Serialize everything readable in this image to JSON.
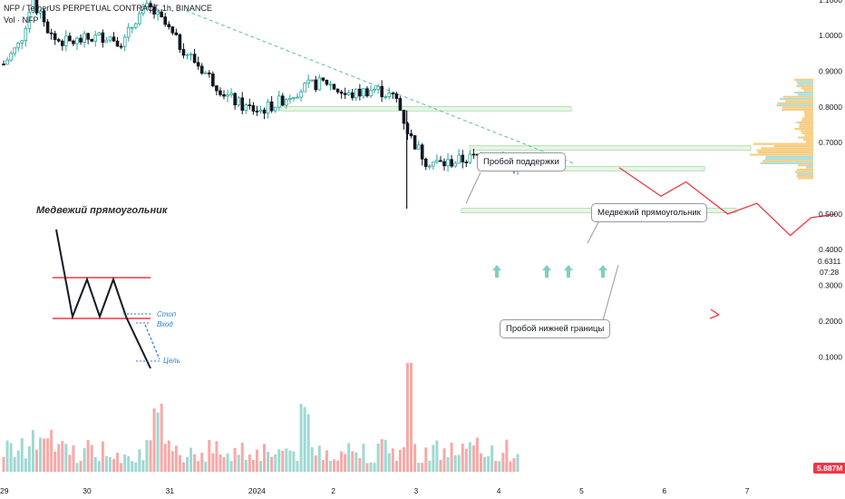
{
  "header": {
    "title": "NFP / TetherUS PERPETUAL CONTRACT, 1h, BINANCE",
    "indicator": "Vol · NFP"
  },
  "price_axis": {
    "labels": [
      "1.3000",
      "1.2000",
      "1.1000",
      "1.0000",
      "0.9000",
      "0.8000",
      "0.7000",
      "0.6311",
      "0.5000",
      "0.4000",
      "0.3000",
      "0.2000",
      "0.1000"
    ],
    "current_price": "0.6311",
    "countdown": "07:28",
    "volume_label": "5.887M"
  },
  "time_axis": {
    "labels": [
      "29",
      "30",
      "31",
      "2024",
      "2",
      "3",
      "4",
      "5",
      "6",
      "7"
    ]
  },
  "annotations": {
    "support_break": "Пробой поддержки",
    "bear_rect": "Медвежий прямоугольник",
    "lower_break": "Пробой нижней границы",
    "inset_title": "Медвежий прямоугольник",
    "inset_stop": "Стоп",
    "inset_entry": "Вход",
    "inset_target": "Цель"
  },
  "colors": {
    "up": "#26a69a",
    "down": "#131722",
    "vol_up": "#9fd8d2",
    "vol_down": "#f7a9a7",
    "zone": "#b7e1b3",
    "red": "#f23645",
    "trend": "#5bbfa3",
    "arrow": "#7ecfc0",
    "blue": "#2a7fd4"
  },
  "chart_data": {
    "type": "candlestick",
    "title": "NFP / TetherUS PERPETUAL CONTRACT, 1h, BINANCE",
    "ylim": [
      0.03,
      1.36
    ],
    "y_ticks": [
      1.3,
      1.2,
      1.1,
      1.0,
      0.9,
      0.8,
      0.7,
      0.5,
      0.4,
      0.3,
      0.2,
      0.1
    ],
    "x_labels": [
      "29",
      "30",
      "31",
      "2024",
      "2",
      "3",
      "4",
      "5",
      "6",
      "7"
    ],
    "price_path_x_days": [
      0,
      0.2,
      0.35,
      0.45,
      0.6,
      0.8,
      1.0,
      1.25,
      1.45,
      1.6,
      1.75,
      1.95,
      2.1,
      2.3,
      2.5,
      2.7,
      2.9,
      3.1,
      3.3,
      3.5,
      3.7,
      3.9,
      4.15,
      4.3,
      4.45,
      4.5,
      4.6,
      4.75,
      4.9,
      5.1,
      5.3,
      5.5,
      5.7,
      5.85,
      6.05,
      6.25
    ],
    "price_path_y": [
      0.92,
      0.98,
      1.1,
      1.05,
      0.99,
      0.98,
      0.99,
      1.0,
      0.98,
      1.05,
      1.08,
      1.03,
      0.98,
      0.93,
      0.88,
      0.83,
      0.8,
      0.79,
      0.81,
      0.84,
      0.86,
      0.87,
      0.83,
      0.84,
      0.85,
      0.85,
      0.84,
      0.82,
      0.72,
      0.65,
      0.64,
      0.65,
      0.66,
      0.67,
      0.65,
      0.63
    ],
    "support_levels": [
      0.795,
      0.685,
      0.627,
      0.51
    ],
    "trendline": [
      [
        2.2,
        1.07
      ],
      [
        6.0,
        0.63
      ]
    ],
    "projection_path": [
      [
        6.25,
        0.63
      ],
      [
        6.75,
        0.55
      ],
      [
        7.05,
        0.59
      ],
      [
        7.55,
        0.5
      ],
      [
        7.9,
        0.53
      ],
      [
        8.3,
        0.44
      ],
      [
        8.55,
        0.49
      ],
      [
        8.85,
        0.5
      ]
    ],
    "volume_max_m": 38,
    "current_volume": "5.887M"
  }
}
